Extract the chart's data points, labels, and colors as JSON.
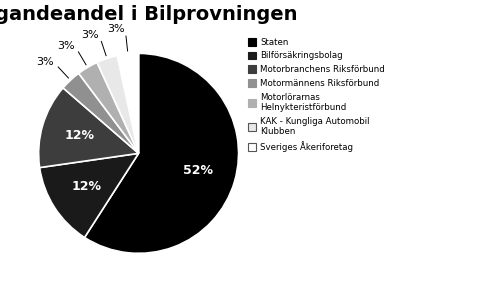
{
  "title": "Ägandeandel i Bilprovningen",
  "slices": [
    52,
    12,
    12,
    3,
    3,
    3,
    3
  ],
  "pct_labels": [
    "52%",
    "12%",
    "12%",
    "3%",
    "3%",
    "3%",
    "3%"
  ],
  "colors": [
    "#000000",
    "#1a1a1a",
    "#3d3d3d",
    "#909090",
    "#b0b0b0",
    "#e8e8e8",
    "#ffffff"
  ],
  "wedge_edgecolor": "white",
  "legend_labels": [
    "Staten",
    "Bilförsäkringsbolag",
    "Motorbranchens Riksförbund",
    "Motormännens Riksförbund",
    "Motorlörarnas\nHelnykteristförbund",
    "KAK - Kungliga Automobil\nKlubben",
    "Sveriges Åkeriforetag"
  ],
  "legend_facecolors": [
    "#000000",
    "#1a1a1a",
    "#3d3d3d",
    "#909090",
    "#b0b0b0",
    "#e8e8e8",
    "#ffffff"
  ],
  "legend_edgecolors": [
    "#000000",
    "#1a1a1a",
    "#3d3d3d",
    "#909090",
    "#b0b0b0",
    "#555555",
    "#555555"
  ],
  "startangle": 90,
  "title_fontsize": 14,
  "label_fontsize": 9,
  "inside_label_color": "white",
  "outside_label_color": "black"
}
